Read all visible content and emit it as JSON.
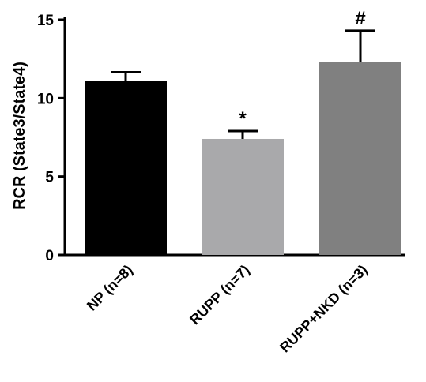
{
  "chart_data": {
    "type": "bar",
    "title": "",
    "xlabel": "",
    "ylabel": "RCR (State3/State4)",
    "ylim": [
      0,
      15
    ],
    "yticks": [
      0,
      5,
      10,
      15
    ],
    "grid": false,
    "categories": [
      "NP (n=8)",
      "RUPP (n=7)",
      "RUPP+NKD (n=3)"
    ],
    "values": [
      11.1,
      7.4,
      12.3
    ],
    "errors": [
      0.55,
      0.5,
      2.0
    ],
    "annotations": [
      "",
      "*",
      "#"
    ],
    "colors": [
      "#000000",
      "#a9a9ab",
      "#808080"
    ]
  }
}
